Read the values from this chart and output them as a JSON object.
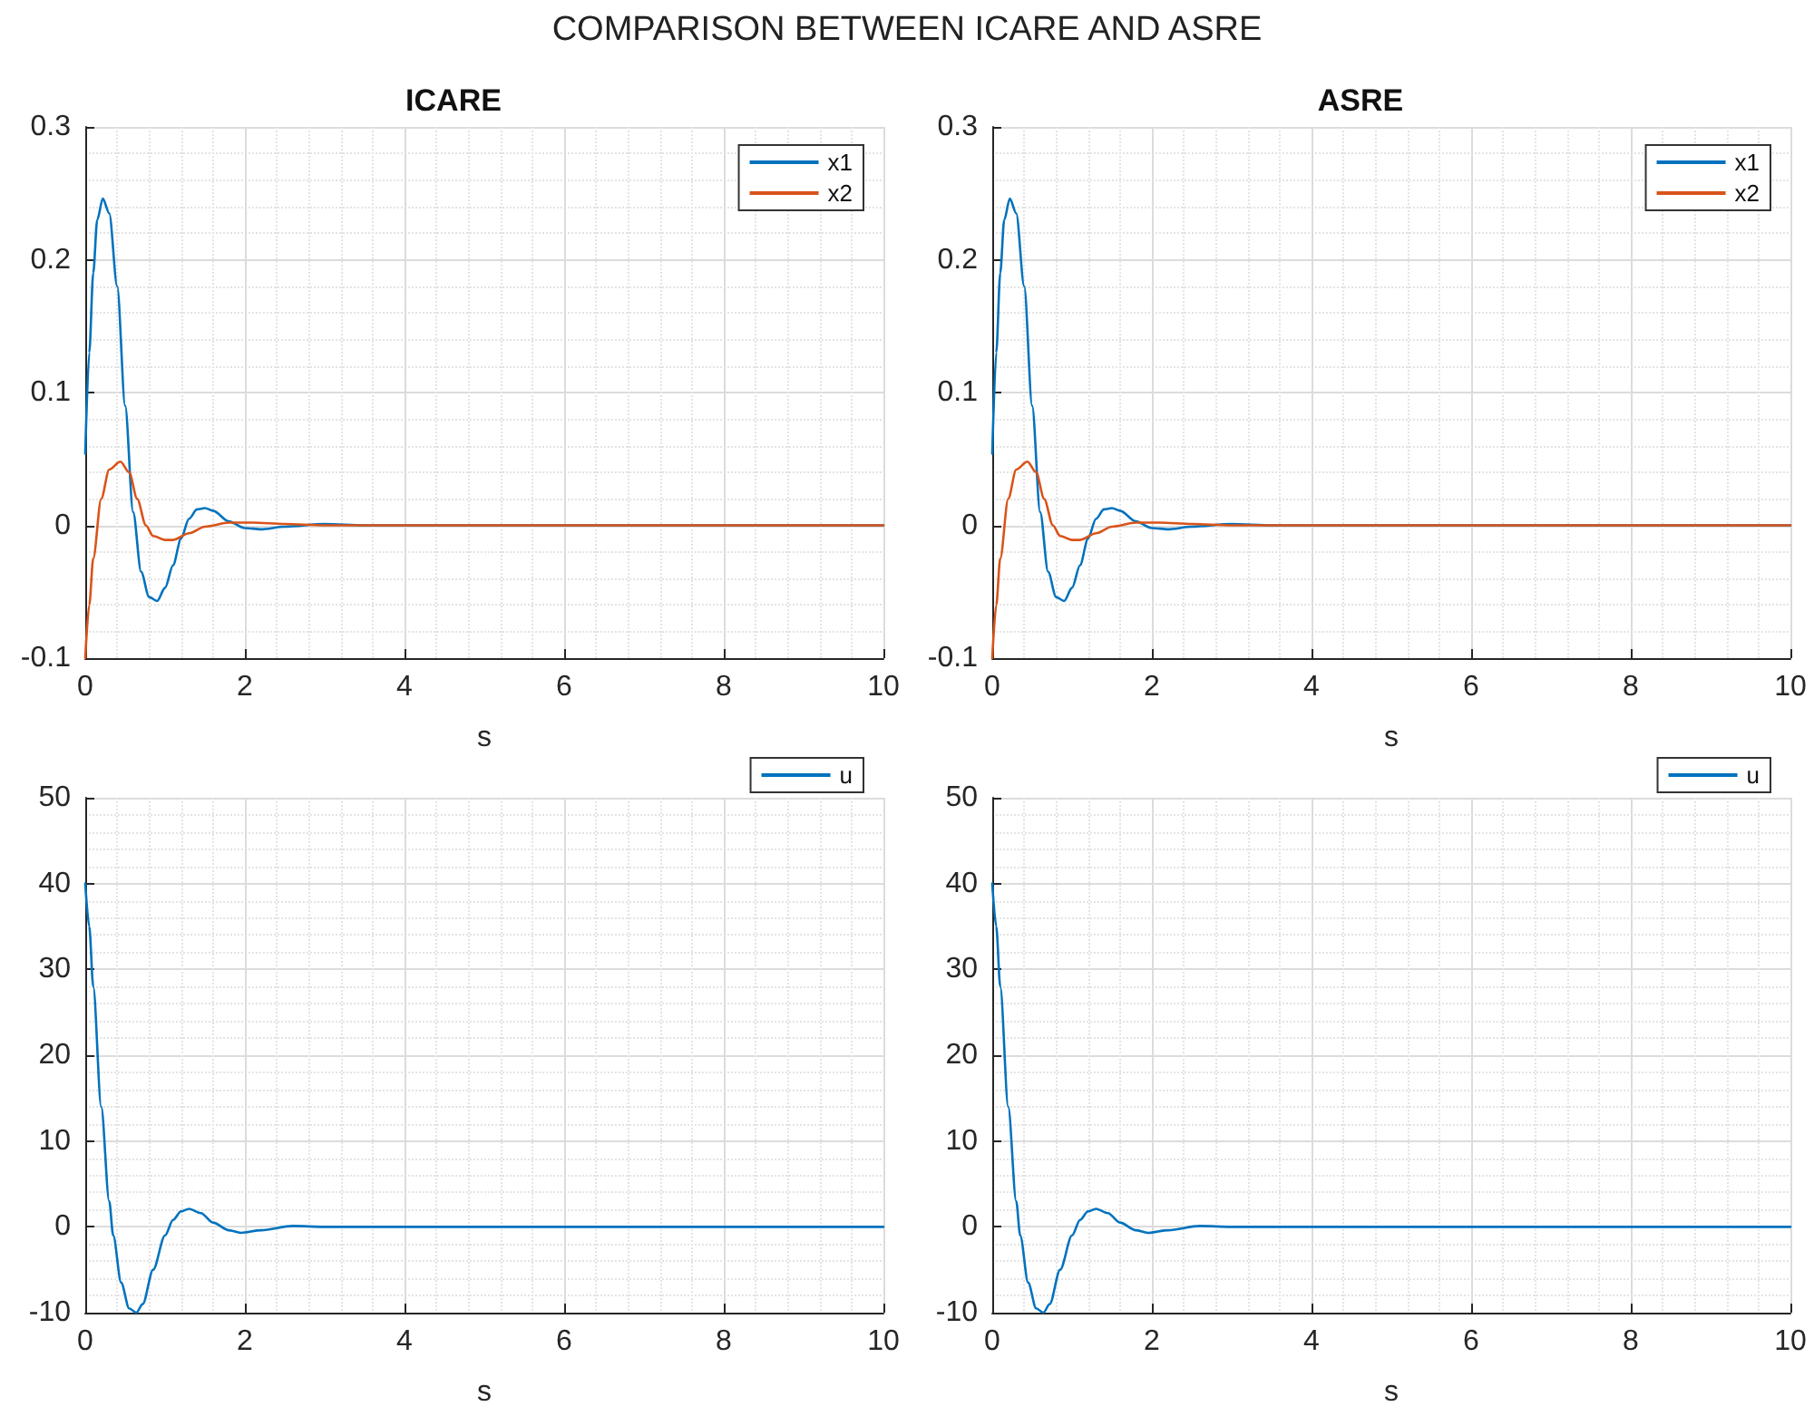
{
  "chart_data": [
    {
      "type": "line",
      "title": "ICARE",
      "annotations": [
        "COMPARISON BETWEEN ICARE AND ASRE"
      ],
      "xlabel": "s",
      "xlim": [
        0,
        10
      ],
      "xticks": [
        0,
        2,
        4,
        6,
        8,
        10
      ],
      "ylim": [
        -0.1,
        0.3
      ],
      "yticks": [
        -0.1,
        0,
        0.1,
        0.2,
        0.3
      ],
      "grid": true,
      "legend": "top right",
      "marker": "none",
      "line_style": "solid",
      "series": [
        {
          "name": "x1",
          "color": "#0072bd",
          "x": [
            0,
            0.05,
            0.1,
            0.15,
            0.22,
            0.3,
            0.4,
            0.5,
            0.6,
            0.7,
            0.8,
            0.9,
            1.0,
            1.1,
            1.2,
            1.3,
            1.4,
            1.5,
            1.6,
            1.8,
            2.0,
            2.2,
            2.5,
            3,
            3.5,
            10
          ],
          "values": [
            0.054,
            0.13,
            0.19,
            0.23,
            0.246,
            0.235,
            0.18,
            0.09,
            0.01,
            -0.035,
            -0.054,
            -0.057,
            -0.047,
            -0.03,
            -0.01,
            0.005,
            0.012,
            0.013,
            0.011,
            0.003,
            -0.002,
            -0.003,
            -0.001,
            0.001,
            0,
            0
          ]
        },
        {
          "name": "x2",
          "color": "#d95319",
          "x": [
            0,
            0.05,
            0.1,
            0.2,
            0.3,
            0.44,
            0.55,
            0.65,
            0.76,
            0.85,
            1.0,
            1.1,
            1.3,
            1.5,
            1.8,
            2.1,
            2.5,
            3,
            10
          ],
          "values": [
            -0.1,
            -0.06,
            -0.025,
            0.02,
            0.042,
            0.048,
            0.04,
            0.02,
            0,
            -0.008,
            -0.011,
            -0.011,
            -0.006,
            -0.001,
            0.002,
            0.002,
            0.001,
            0,
            0
          ]
        }
      ]
    },
    {
      "type": "line",
      "title": "ASRE",
      "xlabel": "s",
      "xlim": [
        0,
        10
      ],
      "xticks": [
        0,
        2,
        4,
        6,
        8,
        10
      ],
      "ylim": [
        -0.1,
        0.3
      ],
      "yticks": [
        -0.1,
        0,
        0.1,
        0.2,
        0.3
      ],
      "grid": true,
      "legend": "top right",
      "marker": "none",
      "line_style": "solid",
      "series": [
        {
          "name": "x1",
          "color": "#0072bd",
          "x": [
            0,
            0.05,
            0.1,
            0.15,
            0.22,
            0.3,
            0.4,
            0.5,
            0.6,
            0.7,
            0.8,
            0.9,
            1.0,
            1.1,
            1.2,
            1.3,
            1.4,
            1.5,
            1.6,
            1.8,
            2.0,
            2.2,
            2.5,
            3,
            3.5,
            10
          ],
          "values": [
            0.054,
            0.13,
            0.19,
            0.23,
            0.246,
            0.235,
            0.18,
            0.09,
            0.01,
            -0.035,
            -0.054,
            -0.057,
            -0.047,
            -0.03,
            -0.01,
            0.005,
            0.012,
            0.013,
            0.011,
            0.003,
            -0.002,
            -0.003,
            -0.001,
            0.001,
            0,
            0
          ]
        },
        {
          "name": "x2",
          "color": "#d95319",
          "x": [
            0,
            0.05,
            0.1,
            0.2,
            0.3,
            0.44,
            0.55,
            0.65,
            0.76,
            0.85,
            1.0,
            1.1,
            1.3,
            1.5,
            1.8,
            2.1,
            2.5,
            3,
            10
          ],
          "values": [
            -0.1,
            -0.06,
            -0.025,
            0.02,
            0.042,
            0.048,
            0.04,
            0.02,
            0,
            -0.008,
            -0.011,
            -0.011,
            -0.006,
            -0.001,
            0.002,
            0.002,
            0.001,
            0,
            0
          ]
        }
      ]
    },
    {
      "type": "line",
      "xlabel": "s",
      "xlim": [
        0,
        10
      ],
      "xticks": [
        0,
        2,
        4,
        6,
        8,
        10
      ],
      "ylim": [
        -10,
        50
      ],
      "yticks": [
        -10,
        0,
        10,
        20,
        30,
        40,
        50
      ],
      "grid": true,
      "legend": "top right",
      "marker": "none",
      "line_style": "solid",
      "series": [
        {
          "name": "u",
          "color": "#0072bd",
          "x": [
            0,
            0.05,
            0.1,
            0.2,
            0.3,
            0.35,
            0.45,
            0.55,
            0.64,
            0.72,
            0.85,
            1.0,
            1.1,
            1.2,
            1.3,
            1.45,
            1.6,
            1.8,
            1.95,
            2.2,
            2.6,
            3,
            10
          ],
          "values": [
            40,
            35,
            28,
            14,
            3,
            -1,
            -6.5,
            -9.5,
            -10,
            -9,
            -5,
            -1,
            0.8,
            1.8,
            2.1,
            1.6,
            0.5,
            -0.4,
            -0.7,
            -0.4,
            0.1,
            0,
            0
          ]
        }
      ]
    },
    {
      "type": "line",
      "xlabel": "s",
      "xlim": [
        0,
        10
      ],
      "xticks": [
        0,
        2,
        4,
        6,
        8,
        10
      ],
      "ylim": [
        -10,
        50
      ],
      "yticks": [
        -10,
        0,
        10,
        20,
        30,
        40,
        50
      ],
      "grid": true,
      "legend": "top right",
      "marker": "none",
      "line_style": "solid",
      "series": [
        {
          "name": "u",
          "color": "#0072bd",
          "x": [
            0,
            0.05,
            0.1,
            0.2,
            0.3,
            0.35,
            0.45,
            0.55,
            0.64,
            0.72,
            0.85,
            1.0,
            1.1,
            1.2,
            1.3,
            1.45,
            1.6,
            1.8,
            1.95,
            2.2,
            2.6,
            3,
            10
          ],
          "values": [
            40,
            35,
            28,
            14,
            3,
            -1,
            -6.5,
            -9.5,
            -10,
            -9,
            -5,
            -1,
            0.8,
            1.8,
            2.1,
            1.6,
            0.5,
            -0.4,
            -0.7,
            -0.4,
            0.1,
            0,
            0
          ]
        }
      ]
    }
  ]
}
